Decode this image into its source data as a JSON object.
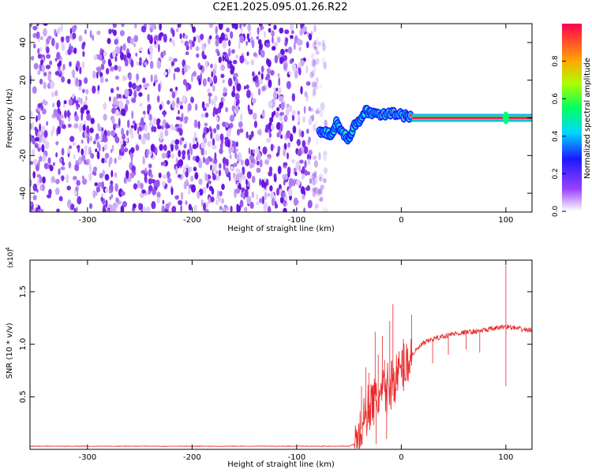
{
  "title": "C2E1.2025.095.01.26.R22",
  "chart_data": [
    {
      "type": "heatmap",
      "xlabel": "Height of straight line (km)",
      "ylabel": "Frequency (Hz)",
      "xlim": [
        -355,
        125
      ],
      "ylim": [
        -50,
        50
      ],
      "xticks": [
        -300,
        -200,
        -100,
        0,
        100
      ],
      "yticks": [
        -40,
        -20,
        0,
        20,
        40
      ],
      "noise_x_range": [
        -355,
        -72
      ],
      "signal_track": [
        {
          "x": -78,
          "y": -7
        },
        {
          "x": -72,
          "y": -8
        },
        {
          "x": -66,
          "y": -9
        },
        {
          "x": -62,
          "y": -2
        },
        {
          "x": -56,
          "y": -8
        },
        {
          "x": -50,
          "y": -11
        },
        {
          "x": -46,
          "y": -5
        },
        {
          "x": -40,
          "y": -1
        },
        {
          "x": -34,
          "y": 4
        },
        {
          "x": -28,
          "y": 2
        },
        {
          "x": -20,
          "y": 1
        },
        {
          "x": -12,
          "y": 3
        },
        {
          "x": -4,
          "y": 2
        },
        {
          "x": 4,
          "y": 1
        },
        {
          "x": 10,
          "y": 0.5
        }
      ],
      "tone_line": {
        "x_start": 10,
        "x_end": 125,
        "y": 0
      },
      "colorbar": {
        "label": "Normalized spectral amplitude",
        "ticks": [
          0.0,
          0.2,
          0.4,
          0.6,
          0.8
        ],
        "tick_labels": [
          "0.0",
          "0.2",
          "0.4",
          "0.6",
          "0.8"
        ],
        "range": [
          0,
          1
        ]
      }
    },
    {
      "type": "line",
      "xlabel": "Height of straight line (km)",
      "ylabel": "SNR (10 * v/v)",
      "scale_label": "(x10",
      "scale_exponent": "4",
      "xlim": [
        -355,
        125
      ],
      "ylim": [
        0,
        1.8
      ],
      "xticks": [
        -300,
        -200,
        -100,
        0,
        100
      ],
      "yticks": [
        0.5,
        1.0,
        1.5
      ],
      "ytick_labels": [
        "0.5",
        "1.0",
        "1.5"
      ],
      "series": [
        {
          "color": "#e8282a",
          "baseline": [
            {
              "x": -355,
              "y": 0.03
            },
            {
              "x": -50,
              "y": 0.03
            },
            {
              "x": -45,
              "y": 0.05
            },
            {
              "x": -40,
              "y": 0.12
            },
            {
              "x": -35,
              "y": 0.3
            },
            {
              "x": -30,
              "y": 0.42
            },
            {
              "x": -20,
              "y": 0.5
            },
            {
              "x": -10,
              "y": 0.62
            },
            {
              "x": 0,
              "y": 0.75
            },
            {
              "x": 10,
              "y": 0.9
            },
            {
              "x": 20,
              "y": 1.0
            },
            {
              "x": 30,
              "y": 1.05
            },
            {
              "x": 50,
              "y": 1.1
            },
            {
              "x": 70,
              "y": 1.12
            },
            {
              "x": 90,
              "y": 1.15
            },
            {
              "x": 100,
              "y": 1.17
            },
            {
              "x": 110,
              "y": 1.15
            },
            {
              "x": 125,
              "y": 1.13
            }
          ],
          "spikes": [
            {
              "x": -38,
              "y": 0.6
            },
            {
              "x": -34,
              "y": 0.78
            },
            {
              "x": -31,
              "y": 0.73
            },
            {
              "x": -28,
              "y": 0.6
            },
            {
              "x": -25,
              "y": 1.12
            },
            {
              "x": -22,
              "y": 0.9
            },
            {
              "x": -18,
              "y": 1.08
            },
            {
              "x": -16,
              "y": 0.85
            },
            {
              "x": -11,
              "y": 1.22
            },
            {
              "x": -8,
              "y": 1.38
            },
            {
              "x": 2,
              "y": 1.05
            },
            {
              "x": 10,
              "y": 1.28
            },
            {
              "x": 100,
              "y": 1.75
            }
          ],
          "dips": [
            {
              "x": -24,
              "y": 0.05
            },
            {
              "x": -14,
              "y": 0.1
            },
            {
              "x": 30,
              "y": 0.82
            },
            {
              "x": 45,
              "y": 0.9
            },
            {
              "x": 62,
              "y": 0.95
            },
            {
              "x": 75,
              "y": 0.92
            },
            {
              "x": 100,
              "y": 0.6
            }
          ]
        }
      ]
    }
  ]
}
